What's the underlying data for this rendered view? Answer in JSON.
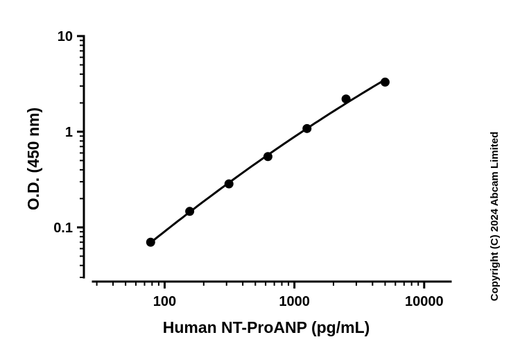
{
  "chart_data": {
    "type": "scatter",
    "title": "",
    "xlabel": "Human NT-ProANP (pg/mL)",
    "ylabel": "O.D. (450 nm)",
    "xscale": "log",
    "yscale": "log",
    "xlim": [
      28,
      16000
    ],
    "ylim": [
      0.03,
      10
    ],
    "x_ticks": [
      100,
      1000,
      10000
    ],
    "x_tick_labels": [
      "100",
      "1000",
      "10000"
    ],
    "y_ticks": [
      0.1,
      1,
      10
    ],
    "y_tick_labels": [
      "0.1",
      "1",
      "10"
    ],
    "grid": false,
    "legend": "none",
    "series": [
      {
        "x": [
          78,
          156,
          313,
          625,
          1250,
          2500,
          5000
        ],
        "y": [
          0.07,
          0.147,
          0.285,
          0.55,
          1.08,
          2.2,
          3.3
        ],
        "fit": "curve"
      }
    ],
    "colors": {
      "marker": "#000000",
      "line": "#000000"
    }
  },
  "copyright": "Copyright (C) 2024 Abcam Limited"
}
